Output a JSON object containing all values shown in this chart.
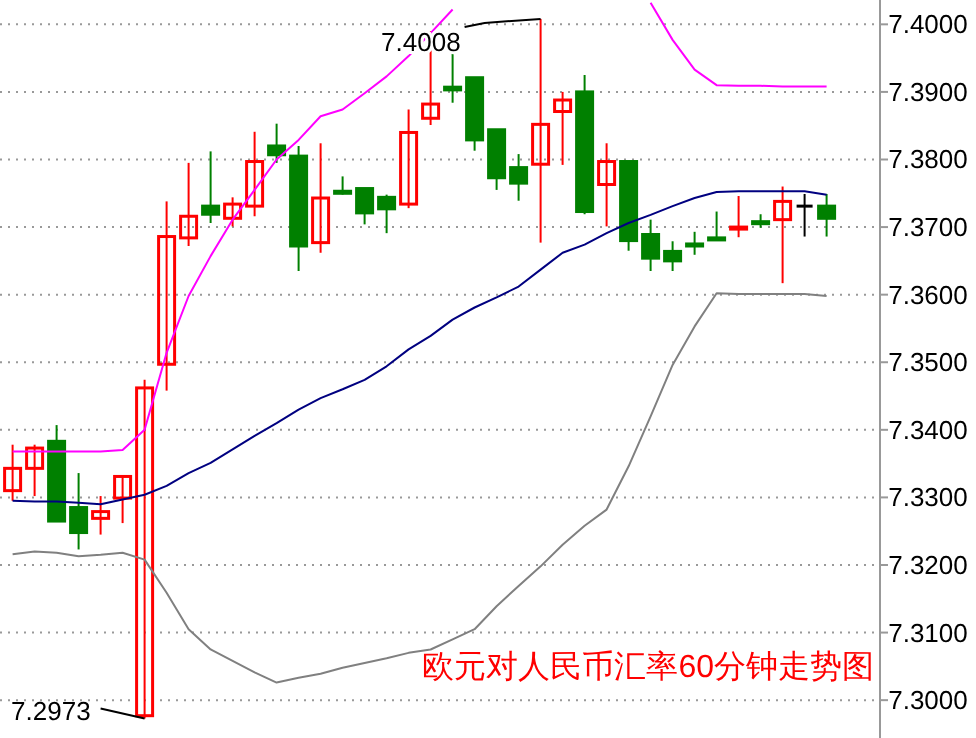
{
  "chart_data": {
    "type": "candlestick",
    "title": "欧元对人民币汇率60分钟走势图",
    "categories": [
      null,
      null,
      null,
      null,
      null,
      null,
      null,
      null,
      null,
      null,
      null,
      null,
      null,
      null,
      null,
      null,
      null,
      null,
      null,
      null,
      null,
      null,
      null,
      null,
      null,
      null,
      null,
      null,
      null,
      null,
      null,
      null,
      null,
      null,
      null,
      null,
      null,
      null
    ],
    "ohlc": [
      [
        7.331,
        7.3378,
        7.3295,
        7.3343
      ],
      [
        7.3343,
        7.3378,
        7.3302,
        7.3373
      ],
      [
        7.3383,
        7.3407,
        7.3265,
        7.3265
      ],
      [
        7.3285,
        7.3336,
        7.3223,
        7.3248
      ],
      [
        7.3269,
        7.3302,
        7.3245,
        7.3279
      ],
      [
        7.3299,
        7.3331,
        7.3262,
        7.3331
      ],
      [
        7.2977,
        7.3474,
        7.2973,
        7.3462
      ],
      [
        7.3497,
        7.3738,
        7.3458,
        7.3686
      ],
      [
        7.3684,
        7.3795,
        7.3672,
        7.3716
      ],
      [
        7.3731,
        7.3812,
        7.3706,
        7.3719
      ],
      [
        7.3713,
        7.3744,
        7.3701,
        7.3734
      ],
      [
        7.3731,
        7.3841,
        7.3716,
        7.3797
      ],
      [
        7.382,
        7.3853,
        7.3795,
        7.3807
      ],
      [
        7.3805,
        7.382,
        7.3635,
        7.3672
      ],
      [
        7.3677,
        7.3824,
        7.3662,
        7.3743
      ],
      [
        7.3753,
        7.3775,
        7.3748,
        7.375
      ],
      [
        7.3757,
        7.3757,
        7.3704,
        7.3721
      ],
      [
        7.3744,
        7.3748,
        7.3691,
        7.3727
      ],
      [
        7.3734,
        7.3874,
        7.3728,
        7.384
      ],
      [
        7.3861,
        7.399,
        7.3851,
        7.3882
      ],
      [
        7.3907,
        7.3963,
        7.3884,
        7.3903
      ],
      [
        7.3921,
        7.3921,
        7.3813,
        7.3829
      ],
      [
        7.3844,
        7.3844,
        7.3755,
        7.3773
      ],
      [
        7.3788,
        7.3808,
        7.3739,
        7.3765
      ],
      [
        7.3793,
        7.4008,
        7.3677,
        7.3852
      ],
      [
        7.3871,
        7.39,
        7.3792,
        7.3888
      ],
      [
        7.39,
        7.3925,
        7.3719,
        7.3723
      ],
      [
        7.3763,
        7.3824,
        7.3701,
        7.3797
      ],
      [
        7.3797,
        7.3797,
        7.3665,
        7.368
      ],
      [
        7.3689,
        7.3711,
        7.3635,
        7.3654
      ],
      [
        7.3664,
        7.3679,
        7.3635,
        7.365
      ],
      [
        7.3675,
        7.3693,
        7.3659,
        7.3672
      ],
      [
        7.3684,
        7.3723,
        7.3681,
        7.3681
      ],
      [
        7.3697,
        7.3746,
        7.3685,
        7.37
      ],
      [
        7.3708,
        7.3719,
        7.3699,
        7.3705
      ],
      [
        7.3711,
        7.376,
        7.3617,
        7.3738
      ],
      [
        7.3731,
        7.3749,
        7.3686,
        7.3731
      ],
      [
        7.3731,
        7.3749,
        7.3686,
        7.3713
      ]
    ],
    "colors": [
      "#ff0000",
      "#ff0000",
      "#008000",
      "#008000",
      "#ff0000",
      "#ff0000",
      "#ff0000",
      "#ff0000",
      "#ff0000",
      "#008000",
      "#ff0000",
      "#ff0000",
      "#008000",
      "#008000",
      "#ff0000",
      "#008000",
      "#008000",
      "#008000",
      "#ff0000",
      "#ff0000",
      "#008000",
      "#008000",
      "#008000",
      "#008000",
      "#ff0000",
      "#ff0000",
      "#008000",
      "#ff0000",
      "#008000",
      "#008000",
      "#008000",
      "#008000",
      "#008000",
      "#ff0000",
      "#008000",
      "#ff0000",
      "#000000",
      "#008000"
    ],
    "series": [
      {
        "type": "line",
        "color": "#ff00ff",
        "values": [
          7.3368,
          7.3368,
          7.3368,
          7.3368,
          7.3368,
          7.337,
          7.34,
          7.3514,
          7.3598,
          7.3657,
          7.3711,
          7.3755,
          7.38,
          7.3829,
          7.3864,
          7.3874,
          7.3898,
          7.3923,
          7.3953,
          7.3987,
          7.4022,
          null,
          null,
          null,
          null,
          null,
          null,
          null,
          null,
          7.4032,
          7.3977,
          7.3933,
          7.391,
          7.3909,
          7.3909,
          7.3908,
          7.3908,
          7.3908
        ]
      },
      {
        "type": "line",
        "color": "#000080",
        "values": [
          7.3295,
          7.3294,
          7.3294,
          7.3292,
          7.329,
          7.3297,
          7.3304,
          7.3317,
          7.3336,
          7.3351,
          7.3371,
          7.3391,
          7.341,
          7.343,
          7.3447,
          7.346,
          7.3474,
          7.3494,
          7.3519,
          7.3539,
          7.3563,
          7.3581,
          7.3596,
          7.3612,
          7.3637,
          7.3662,
          7.3674,
          7.3691,
          7.3706,
          7.3718,
          7.3731,
          7.3743,
          7.3752,
          7.3753,
          7.3753,
          7.3753,
          7.3753,
          7.3748
        ]
      },
      {
        "type": "line",
        "color": "#808080",
        "values": [
          7.3216,
          7.322,
          7.3218,
          7.3213,
          7.3215,
          7.3218,
          7.3208,
          7.3159,
          7.3105,
          7.3075,
          7.3058,
          7.3041,
          7.3026,
          7.3033,
          7.3039,
          7.3048,
          7.3055,
          7.3062,
          7.307,
          7.3075,
          7.309,
          7.3105,
          7.3139,
          7.3169,
          7.3198,
          7.323,
          7.3258,
          7.3282,
          7.3346,
          7.342,
          7.3496,
          7.3553,
          7.3602,
          7.3601,
          7.3601,
          7.3601,
          7.3601,
          7.3598
        ]
      }
    ],
    "ylim": [
      7.2944,
      7.4036
    ],
    "yticks": [
      {
        "value": 7.3,
        "label": "7.3000"
      },
      {
        "value": 7.31,
        "label": "7.3100"
      },
      {
        "value": 7.32,
        "label": "7.3200"
      },
      {
        "value": 7.33,
        "label": "7.3300"
      },
      {
        "value": 7.34,
        "label": "7.3400"
      },
      {
        "value": 7.35,
        "label": "7.3500"
      },
      {
        "value": 7.36,
        "label": "7.3600"
      },
      {
        "value": 7.37,
        "label": "7.3700"
      },
      {
        "value": 7.38,
        "label": "7.3800"
      },
      {
        "value": 7.39,
        "label": "7.3900"
      },
      {
        "value": 7.4,
        "label": "7.4000"
      }
    ],
    "grid": "y",
    "annotations": [
      "7.4008",
      "7.2973"
    ]
  }
}
